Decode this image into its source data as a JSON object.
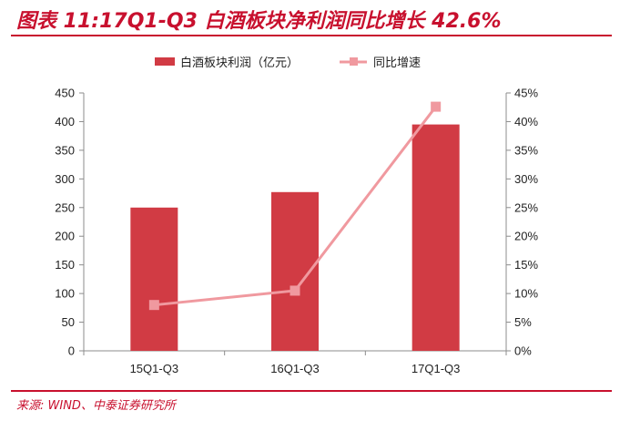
{
  "title": "图表 11:17Q1-Q3 白酒板块净利润同比增长 42.6%",
  "source": "来源: WIND、中泰证券研究所",
  "chart_data": {
    "type": "bar",
    "categories": [
      "15Q1-Q3",
      "16Q1-Q3",
      "17Q1-Q3"
    ],
    "series": [
      {
        "name": "白酒板块利润（亿元）",
        "type": "bar",
        "axis": "left",
        "values": [
          250,
          277,
          395
        ],
        "color": "#d13b44"
      },
      {
        "name": "同比增速",
        "type": "line",
        "axis": "right",
        "values": [
          8.0,
          10.5,
          42.6
        ],
        "color": "#f0999f"
      }
    ],
    "y_left": {
      "ylim": [
        0,
        450
      ],
      "ticks": [
        "0",
        "50",
        "100",
        "150",
        "200",
        "250",
        "300",
        "350",
        "400",
        "450"
      ]
    },
    "y_right": {
      "ylim": [
        0,
        45
      ],
      "ticks": [
        "0%",
        "5%",
        "10%",
        "15%",
        "20%",
        "25%",
        "30%",
        "35%",
        "40%",
        "45%"
      ]
    },
    "legend_position": "top-center",
    "grid": false
  }
}
